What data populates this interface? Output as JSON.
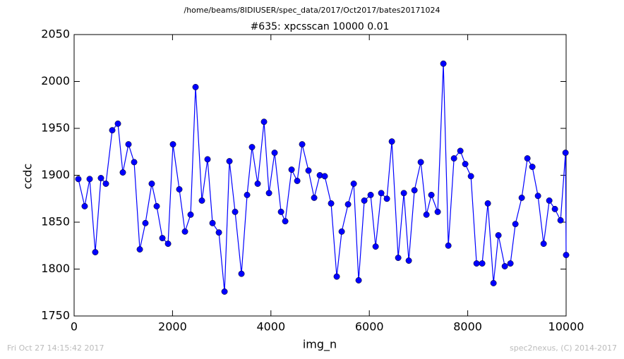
{
  "chart_data": {
    "type": "line",
    "suptitle": "/home/beams/8IDIUSER/spec_data/2017/Oct2017/bates20171024",
    "title": "#635: xpcsscan 10000 0.01",
    "xlabel": "img_n",
    "ylabel": "ccdc",
    "footer_left": "Fri Oct 27 14:15:42 2017",
    "footer_right": "spec2nexus, (C) 2014-2017",
    "color": "#0000ff",
    "marker": "circle",
    "xlim": [
      0,
      10000
    ],
    "xticks": [
      0,
      2000,
      4000,
      6000,
      8000,
      10000
    ],
    "ylim": [
      1750,
      2050
    ],
    "yticks": [
      1750,
      1800,
      1850,
      1900,
      1950,
      2000,
      2050
    ],
    "x": [
      86,
      215,
      316,
      430,
      545,
      646,
      775,
      890,
      990,
      1105,
      1220,
      1335,
      1449,
      1578,
      1679,
      1794,
      1909,
      2009,
      2138,
      2253,
      2368,
      2468,
      2597,
      2712,
      2813,
      2942,
      3057,
      3157,
      3272,
      3401,
      3516,
      3616,
      3731,
      3860,
      3961,
      4075,
      4205,
      4291,
      4420,
      4535,
      4635,
      4764,
      4879,
      4994,
      5094,
      5223,
      5338,
      5439,
      5568,
      5683,
      5783,
      5898,
      6027,
      6128,
      6242,
      6357,
      6458,
      6587,
      6702,
      6802,
      6917,
      7046,
      7161,
      7261,
      7390,
      7505,
      7606,
      7721,
      7850,
      7950,
      8065,
      8180,
      8294,
      8409,
      8524,
      8624,
      8754,
      8868,
      8969,
      9098,
      9213,
      9313,
      9428,
      9543,
      9658,
      9772,
      9887,
      9988,
      10000
    ],
    "values": [
      1896,
      1867,
      1896,
      1818,
      1897,
      1891,
      1948,
      1955,
      1903,
      1933,
      1914,
      1821,
      1849,
      1891,
      1867,
      1833,
      1827,
      1933,
      1885,
      1840,
      1858,
      1994,
      1873,
      1917,
      1849,
      1839,
      1776,
      1915,
      1861,
      1795,
      1879,
      1930,
      1891,
      1957,
      1881,
      1924,
      1861,
      1851,
      1906,
      1894,
      1933,
      1905,
      1876,
      1900,
      1899,
      1870,
      1792,
      1840,
      1869,
      1891,
      1788,
      1873,
      1879,
      1824,
      1881,
      1875,
      1936,
      1812,
      1881,
      1809,
      1884,
      1914,
      1858,
      1879,
      1861,
      2019,
      1825,
      1918,
      1926,
      1912,
      1899,
      1806,
      1806,
      1870,
      1785,
      1836,
      1803,
      1806,
      1848,
      1876,
      1918,
      1909,
      1878,
      1827,
      1873,
      1864,
      1852,
      1924,
      1815
    ]
  }
}
